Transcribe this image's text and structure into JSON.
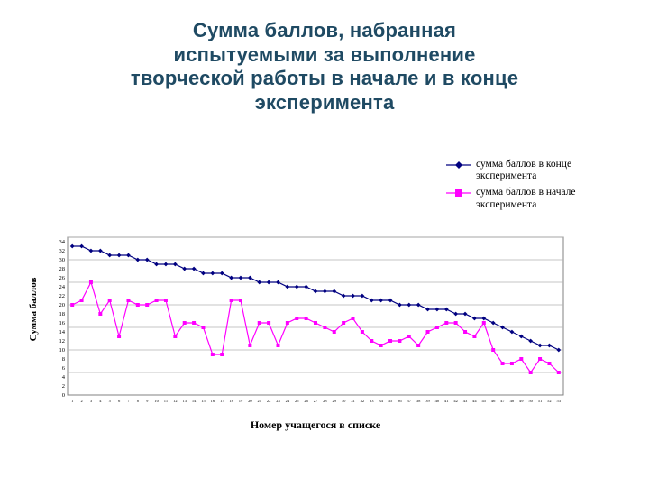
{
  "title": "Сумма баллов, набранная\nиспытуемыми за выполнение\nтворческой работы в начале и в конце\nэксперимента",
  "colors": {
    "title": "#1f4a63",
    "series_end": "#000080",
    "series_start": "#FF00FF",
    "gridline": "#b3b3b3",
    "plot_border": "#808080"
  },
  "chart_data": {
    "type": "line",
    "title": "Сумма баллов, набранная испытуемыми за выполнение творческой работы в начале и в конце эксперимента",
    "xlabel": "Номер учащегося в списке",
    "ylabel": "Сумма баллов",
    "ylim": [
      0,
      35
    ],
    "grid": true,
    "legend_position": "top-right",
    "yticks": [
      0,
      2,
      4,
      6,
      8,
      10,
      12,
      14,
      16,
      18,
      20,
      22,
      24,
      26,
      28,
      30,
      32,
      34
    ],
    "gridlines_at": [
      5,
      10,
      15,
      20,
      25,
      30,
      35
    ],
    "x_labels": [
      "1",
      "2",
      "3",
      "4",
      "5",
      "6",
      "7",
      "8",
      "9",
      "10",
      "11",
      "12",
      "13",
      "14",
      "15",
      "16",
      "17",
      "18",
      "19",
      "20",
      "21",
      "22",
      "23",
      "24",
      "25",
      "26",
      "27",
      "28",
      "29",
      "30",
      "31",
      "32",
      "33",
      "34",
      "35",
      "36",
      "37",
      "38",
      "39",
      "40",
      "41",
      "42",
      "43",
      "44",
      "45",
      "46",
      "47",
      "48",
      "49",
      "50",
      "51",
      "52",
      "53"
    ],
    "series": [
      {
        "name": "сумма баллов в конце эксперимента",
        "color": "#000080",
        "marker": "diamond",
        "values": [
          33,
          33,
          32,
          32,
          31,
          31,
          31,
          30,
          30,
          29,
          29,
          29,
          28,
          28,
          27,
          27,
          27,
          26,
          26,
          26,
          25,
          25,
          25,
          24,
          24,
          24,
          23,
          23,
          23,
          22,
          22,
          22,
          21,
          21,
          21,
          20,
          20,
          20,
          19,
          19,
          19,
          18,
          18,
          17,
          17,
          16,
          15,
          14,
          13,
          12,
          11,
          11,
          10
        ]
      },
      {
        "name": "сумма баллов в начале эксперимента",
        "color": "#FF00FF",
        "marker": "square",
        "values": [
          20,
          21,
          25,
          18,
          21,
          13,
          21,
          20,
          20,
          21,
          21,
          13,
          16,
          16,
          15,
          9,
          9,
          21,
          21,
          11,
          16,
          16,
          11,
          16,
          17,
          17,
          16,
          15,
          14,
          16,
          17,
          14,
          12,
          11,
          12,
          12,
          13,
          11,
          14,
          15,
          16,
          16,
          14,
          13,
          16,
          10,
          7,
          7,
          8,
          5,
          8,
          7,
          5
        ]
      }
    ]
  }
}
